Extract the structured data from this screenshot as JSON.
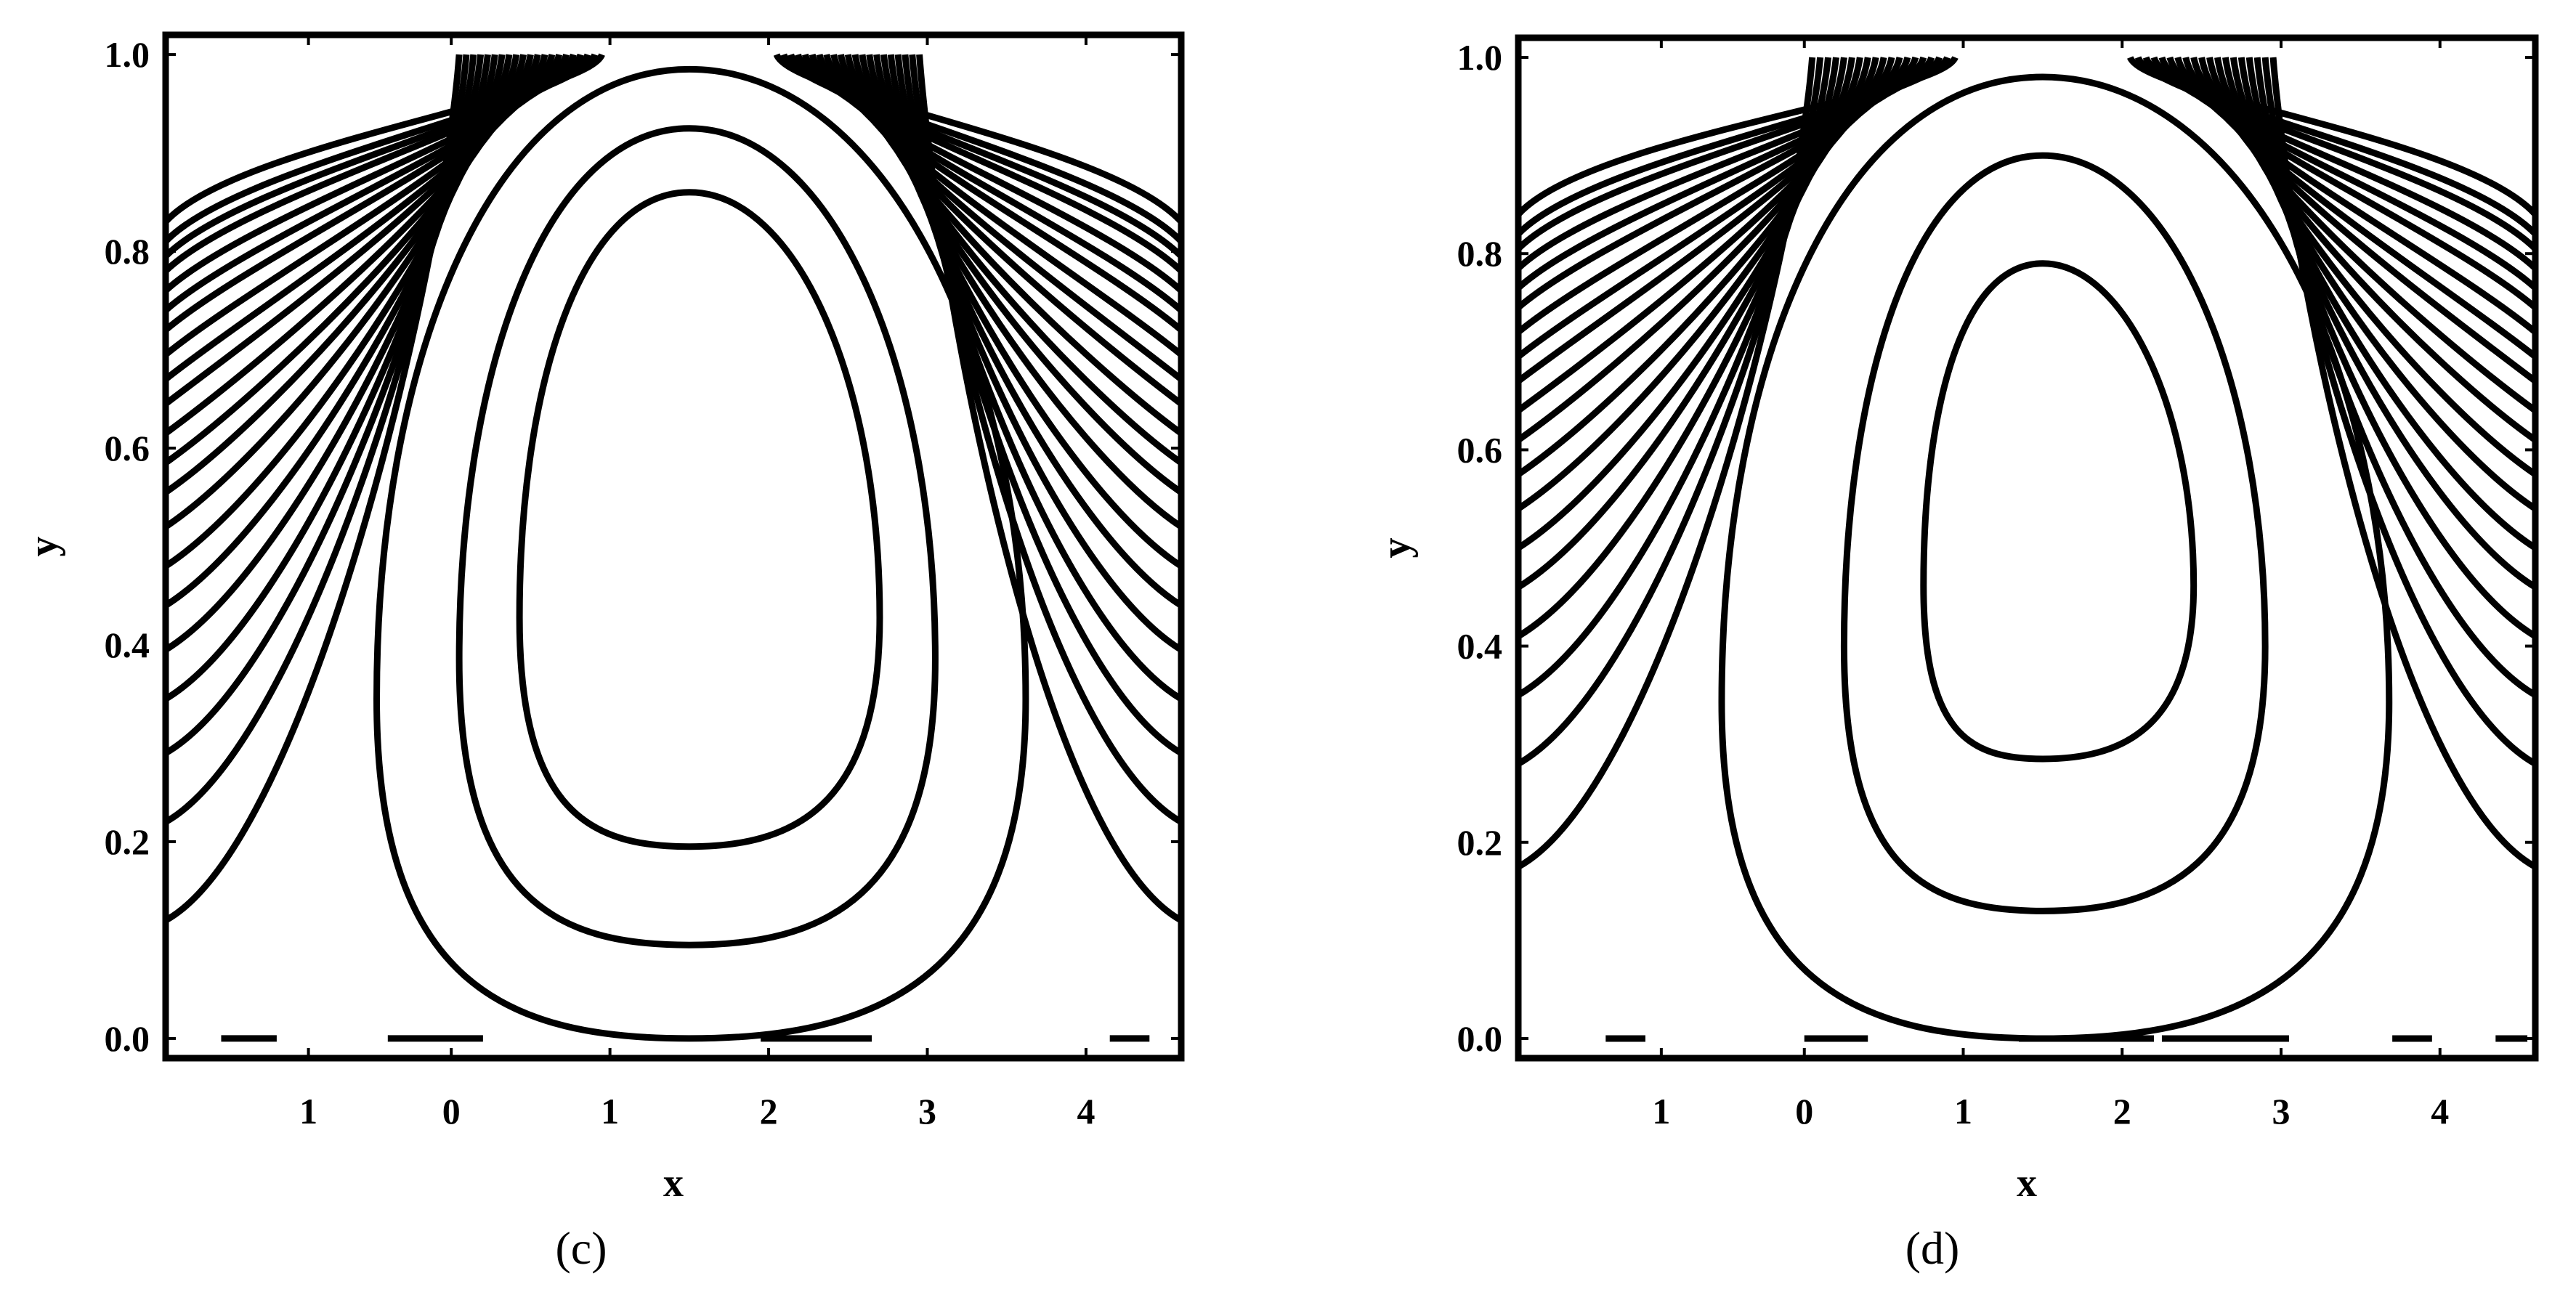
{
  "chart_data": [
    {
      "type": "contour",
      "panel_label": "(c)",
      "xlabel": "x",
      "ylabel": "y",
      "xlim": [
        -1.8,
        4.6
      ],
      "ylim": [
        -0.02,
        1.02
      ],
      "x_tick_labels": [
        "1",
        "0",
        "1",
        "2",
        "3",
        "4"
      ],
      "x_tick_values": [
        -0.9,
        0,
        1,
        2,
        3,
        4
      ],
      "y_tick_labels": [
        "0.0",
        "0.2",
        "0.4",
        "0.6",
        "0.8",
        "1.0"
      ],
      "y_tick_values": [
        0,
        0.2,
        0.4,
        0.6,
        0.8,
        1.0
      ],
      "grid": false,
      "closed_contours": [
        {
          "xc": 1.5,
          "y_bottom": 0.195,
          "y_top": 0.86,
          "x_left": 0.43,
          "x_right": 2.7
        },
        {
          "xc": 1.5,
          "y_bottom": 0.095,
          "y_top": 0.925,
          "x_left": 0.05,
          "x_right": 3.05
        },
        {
          "xc": 1.5,
          "y_bottom": 0.0,
          "y_top": 0.985,
          "x_left": -0.47,
          "x_right": 3.62
        }
      ],
      "side_contour_count": 21,
      "side_contour_bottom_y": [
        0.12,
        0.22,
        0.29,
        0.345,
        0.395,
        0.44,
        0.48,
        0.52,
        0.555,
        0.585,
        0.615,
        0.645,
        0.67,
        0.695,
        0.72,
        0.74,
        0.76,
        0.78,
        0.795,
        0.81,
        0.83
      ],
      "baseline_segments": [
        [
          -1.45,
          -1.1
        ],
        [
          -0.4,
          0.2
        ],
        [
          1.95,
          2.65
        ],
        [
          4.15,
          4.4
        ]
      ]
    },
    {
      "type": "contour",
      "panel_label": "(d)",
      "xlabel": "x",
      "ylabel": "y",
      "xlim": [
        -1.8,
        4.6
      ],
      "ylim": [
        -0.02,
        1.02
      ],
      "x_tick_labels": [
        "1",
        "0",
        "1",
        "2",
        "3",
        "4"
      ],
      "x_tick_values": [
        -0.9,
        0,
        1,
        2,
        3,
        4
      ],
      "y_tick_labels": [
        "0.0",
        "0.2",
        "0.4",
        "0.6",
        "0.8",
        "1.0"
      ],
      "y_tick_values": [
        0,
        0.2,
        0.4,
        0.6,
        0.8,
        1.0
      ],
      "grid": false,
      "closed_contours": [
        {
          "xc": 1.5,
          "y_bottom": 0.285,
          "y_top": 0.79,
          "x_left": 0.75,
          "x_right": 2.45
        },
        {
          "xc": 1.5,
          "y_bottom": 0.13,
          "y_top": 0.9,
          "x_left": 0.25,
          "x_right": 2.9
        },
        {
          "xc": 1.5,
          "y_bottom": 0.0,
          "y_top": 0.98,
          "x_left": -0.52,
          "x_right": 3.68
        }
      ],
      "side_contour_count": 19,
      "side_contour_bottom_y": [
        0.175,
        0.28,
        0.35,
        0.41,
        0.46,
        0.5,
        0.54,
        0.575,
        0.61,
        0.64,
        0.67,
        0.695,
        0.72,
        0.745,
        0.765,
        0.785,
        0.805,
        0.82,
        0.84
      ],
      "baseline_segments": [
        [
          -1.25,
          -1.0
        ],
        [
          0.0,
          0.4
        ],
        [
          1.35,
          2.2
        ],
        [
          2.25,
          3.05
        ],
        [
          3.7,
          3.95
        ],
        [
          4.35,
          4.55
        ]
      ]
    }
  ]
}
